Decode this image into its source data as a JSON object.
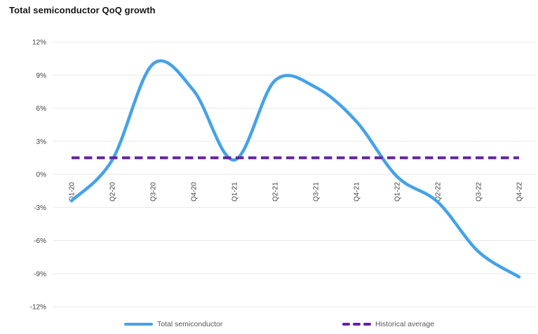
{
  "chart_data": {
    "type": "line",
    "title": "Total semiconductor QoQ growth",
    "categories": [
      "Q1-20",
      "Q2-20",
      "Q3-20",
      "Q4-20",
      "Q1-21",
      "Q2-21",
      "Q3-21",
      "Q4-21",
      "Q1-22",
      "Q2-22",
      "Q3-22",
      "Q4-22"
    ],
    "series": [
      {
        "name": "Total semiconductor",
        "style": "smooth-solid",
        "color": "#45A2E9",
        "values": [
          -2.4,
          1.3,
          10.0,
          7.6,
          1.3,
          8.5,
          7.9,
          4.8,
          -0.2,
          -2.5,
          -7.0,
          -9.3
        ]
      },
      {
        "name": "Historical average",
        "style": "constant-dashed",
        "color": "#6321A5",
        "value": 1.5
      }
    ],
    "xlabel": "",
    "ylabel": "",
    "ylim": [
      -12,
      12
    ],
    "y_ticks": [
      12,
      9,
      6,
      3,
      0,
      -3,
      -6,
      -9,
      -12
    ],
    "y_tick_labels": [
      "12%",
      "9%",
      "6%",
      "3%",
      "0%",
      "-3%",
      "-6%",
      "-9%",
      "-12%"
    ],
    "x_tick_rotation_degrees": -90,
    "grid": true,
    "grid_color": "#E7E7E7",
    "axis_label_color": "#404040",
    "legend_text_color": "#595959",
    "legend_position": "bottom"
  }
}
